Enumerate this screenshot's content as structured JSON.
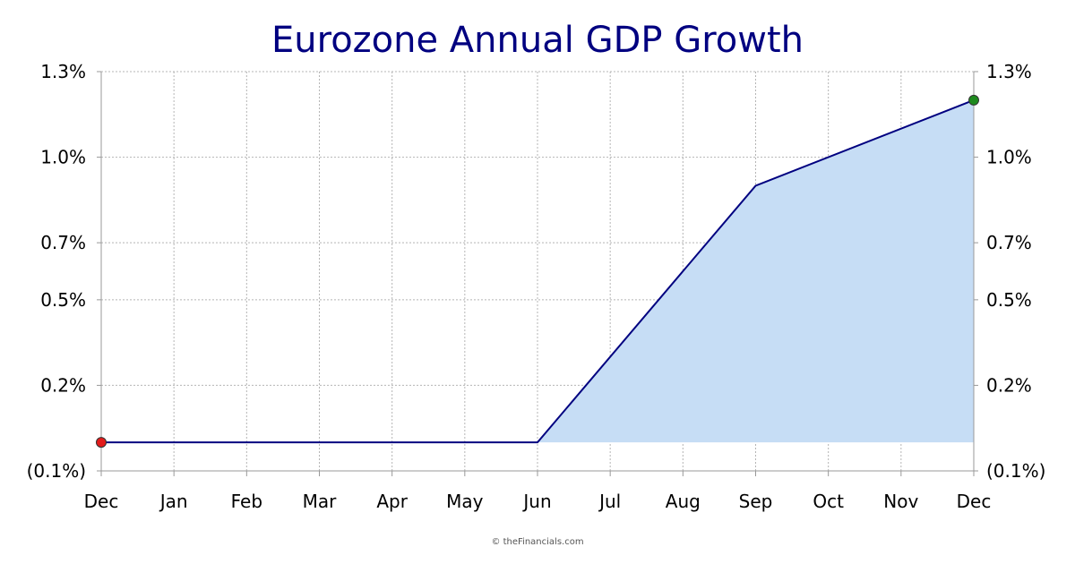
{
  "chart_data": {
    "type": "area",
    "title": "Eurozone Annual GDP Growth",
    "categories": [
      "Dec",
      "Jan",
      "Feb",
      "Mar",
      "Apr",
      "May",
      "Jun",
      "Jul",
      "Aug",
      "Sep",
      "Oct",
      "Nov",
      "Dec"
    ],
    "x_ticks": [
      "Dec",
      "Jan",
      "Feb",
      "Mar",
      "Apr",
      "May",
      "Jun",
      "Jul",
      "Aug",
      "Sep",
      "Oct",
      "Nov",
      "Dec"
    ],
    "y_ticks": [
      "(0.1%)",
      "0.2%",
      "0.5%",
      "0.7%",
      "1.0%",
      "1.3%"
    ],
    "y_tick_values": [
      -0.1,
      0.2,
      0.5,
      0.7,
      1.0,
      1.3
    ],
    "ylim": [
      -0.1,
      1.3
    ],
    "series": [
      {
        "points": [
          {
            "x": "Dec",
            "y": 0.0
          },
          {
            "x": "Jun",
            "y": 0.0
          },
          {
            "x": "Sep",
            "y": 0.9
          },
          {
            "x": "Dec",
            "y": 1.2
          }
        ]
      }
    ],
    "first_point_color": "#e31b1b",
    "last_point_color": "#1e8a1e",
    "line_color": "#000080",
    "fill_color": "#c6ddf5",
    "grid": true,
    "y_axis_both_sides": true,
    "xlabel": "",
    "ylabel": ""
  },
  "credit": "© theFinancials.com"
}
